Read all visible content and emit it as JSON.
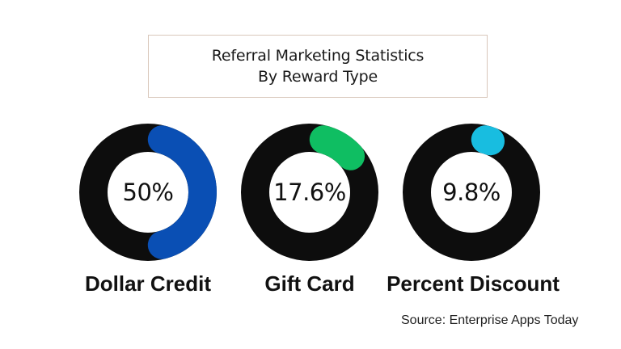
{
  "title": {
    "line1": "Referral Marketing Statistics",
    "line2": "By Reward Type"
  },
  "donuts": [
    {
      "label": "Dollar Credit",
      "value_text": "50%",
      "value": 50,
      "color": "#0a4fb4"
    },
    {
      "label": "Gift Card",
      "value_text": "17.6%",
      "value": 17.6,
      "color": "#0fbe62"
    },
    {
      "label": "Percent Discount",
      "value_text": "9.8%",
      "value": 9.8,
      "color": "#18bde0"
    }
  ],
  "track_color": "#0d0d0d",
  "source": "Source: Enterprise Apps Today",
  "chart_data": {
    "type": "pie",
    "subtype": "donut",
    "title": "Referral Marketing Statistics By Reward Type",
    "categories": [
      "Dollar Credit",
      "Gift Card",
      "Percent Discount"
    ],
    "values": [
      50,
      17.6,
      9.8
    ],
    "unit": "%",
    "colors": [
      "#0a4fb4",
      "#0fbe62",
      "#18bde0"
    ],
    "track_color": "#0d0d0d",
    "note": "Three separate donut gauges, each showing a single percentage",
    "source": "Source: Enterprise Apps Today",
    "legend": "none (labels below each donut)"
  }
}
